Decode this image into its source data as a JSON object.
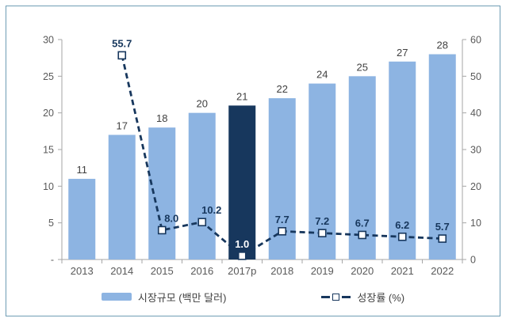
{
  "frame": {
    "background": "#ffffff",
    "border_color": "#6f9db4"
  },
  "chart_data": {
    "type": "bar+line combo",
    "title": "",
    "categories": [
      "2013",
      "2014",
      "2015",
      "2016",
      "2017p",
      "2018",
      "2019",
      "2020",
      "2021",
      "2022"
    ],
    "series": [
      {
        "name": "시장규모 (백만 달러)",
        "type": "bar",
        "axis": "left",
        "values": [
          11,
          17,
          18,
          20,
          21,
          22,
          24,
          25,
          27,
          28
        ],
        "labels": [
          "11",
          "17",
          "18",
          "20",
          "21",
          "22",
          "24",
          "25",
          "27",
          "28"
        ],
        "color": "#8DB4E2",
        "highlight_index": 4,
        "highlight_color": "#17375D"
      },
      {
        "name": "성장률 (%)",
        "type": "line",
        "axis": "right",
        "values": [
          null,
          55.7,
          8.0,
          10.2,
          1.0,
          7.7,
          7.2,
          6.7,
          6.2,
          5.7
        ],
        "labels": [
          null,
          "55.7",
          "8.0",
          "10.2",
          "1.0",
          "7.7",
          "7.2",
          "6.7",
          "6.2",
          "5.7"
        ],
        "color": "#17375D",
        "line_style": "dashed",
        "marker": "white-square",
        "label_overrides": {
          "2": {
            "dx": 12
          },
          "3": {
            "dx": 12
          },
          "4": {
            "color": "#FFFFFF"
          }
        }
      }
    ],
    "left_axis": {
      "min": 0,
      "max": 30,
      "tick_labels": [
        "-",
        "5",
        "10",
        "15",
        "20",
        "25",
        "30"
      ]
    },
    "right_axis": {
      "min": 0,
      "max": 60,
      "tick_labels": [
        "0",
        "10",
        "20",
        "30",
        "40",
        "50",
        "60"
      ]
    },
    "grid": false,
    "axis_color": "#A6A6A6",
    "legend": {
      "position": "bottom",
      "items": [
        {
          "label": "시장규모 (백만 달러)",
          "swatch": "bar"
        },
        {
          "label": "성장률 (%)",
          "swatch": "dashed-line-with-square-marker"
        }
      ]
    }
  }
}
